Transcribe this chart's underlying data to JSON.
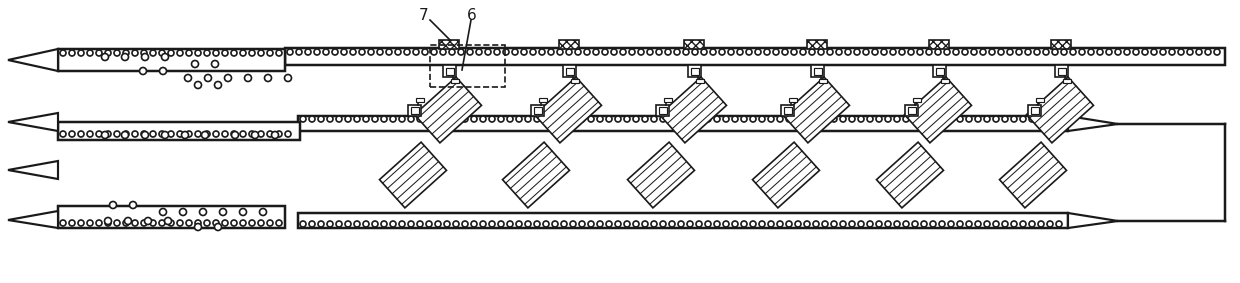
{
  "fig_width": 12.4,
  "fig_height": 2.83,
  "dpi": 100,
  "bg_color": "#ffffff",
  "line_color": "#1a1a1a",
  "lw": 1.2
}
